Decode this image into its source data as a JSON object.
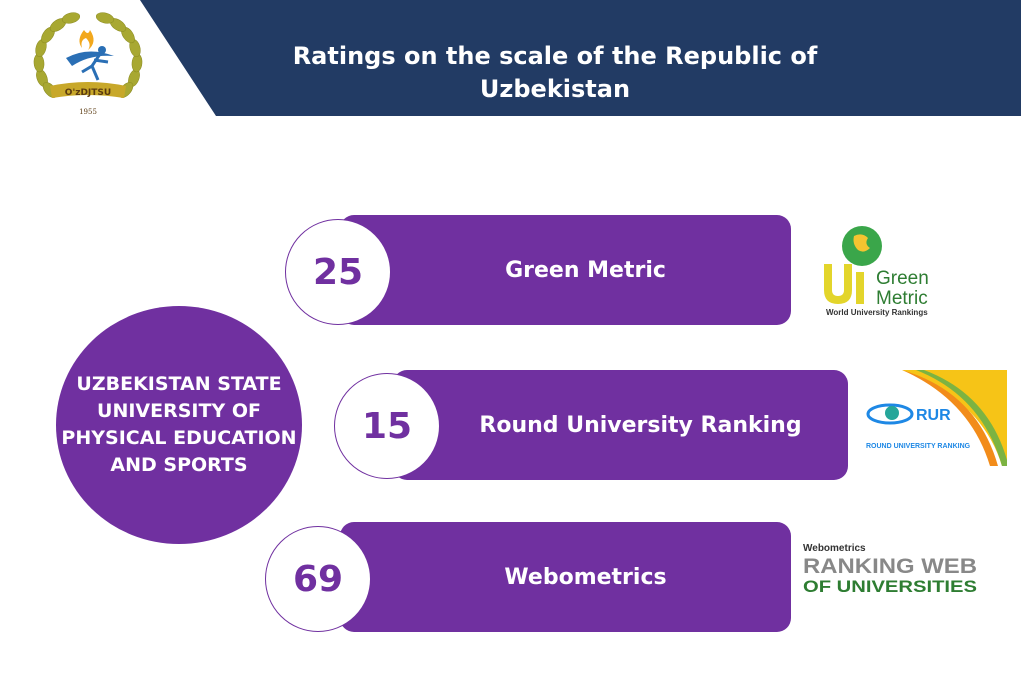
{
  "header": {
    "title_line1": "Ratings on the scale of the Republic of",
    "title_line2": "Uzbekistan",
    "band_color": "#223b64"
  },
  "logo": {
    "abbr": "O'zDJTSU",
    "year": "1955",
    "icon": "university-laurel-emblem"
  },
  "center": {
    "line1": "UZBEKISTAN STATE",
    "line2": "UNIVERSITY OF",
    "line3": "PHYSICAL EDUCATION",
    "line4": "AND SPORTS"
  },
  "accent_color": "#7030a0",
  "rankings": [
    {
      "rank": "25",
      "name": "Green Metric",
      "logo_icon": "ui-greenmetric-logo",
      "logo_text": {
        "a": "Green",
        "b": "Metric",
        "c": "World University Rankings"
      }
    },
    {
      "rank": "15",
      "name": "Round University Ranking",
      "logo_icon": "rur-logo",
      "logo_text": {
        "a": "RUR",
        "b": "ROUND UNIVERSITY RANKING"
      }
    },
    {
      "rank": "69",
      "name": "Webometrics",
      "logo_icon": "webometrics-logo",
      "logo_text": {
        "a": "Webometrics",
        "b": "RANKING WEB",
        "c": "OF UNIVERSITIES"
      }
    }
  ]
}
